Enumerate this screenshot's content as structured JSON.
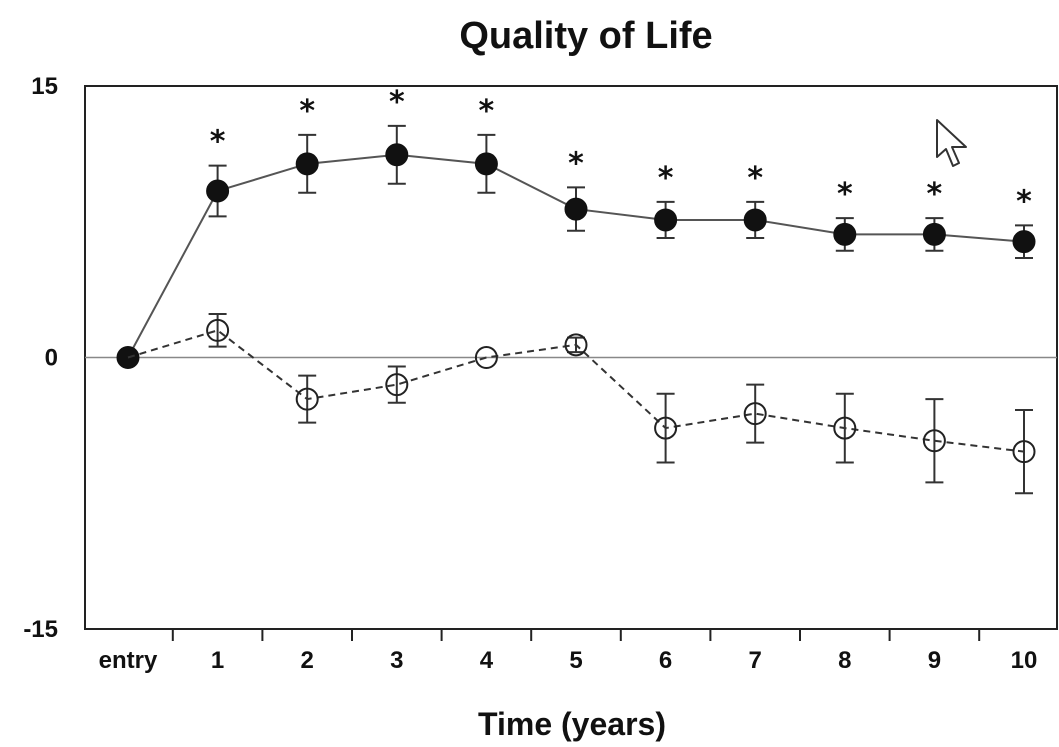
{
  "chart_data": {
    "type": "line",
    "title": "Quality of Life",
    "xlabel": "Time (years)",
    "ylabel": "",
    "categories": [
      "entry",
      "1",
      "2",
      "3",
      "4",
      "5",
      "6",
      "7",
      "8",
      "9",
      "10"
    ],
    "ylim": [
      -15,
      15
    ],
    "yticks": [
      "15",
      "0",
      "-15"
    ],
    "yticks_values": [
      15,
      0,
      -15
    ],
    "zero_line": true,
    "grid": false,
    "series": [
      {
        "style": "filled-solid",
        "color": "#111111",
        "values": [
          0,
          9.2,
          10.7,
          11.2,
          10.7,
          8.2,
          7.6,
          7.6,
          6.8,
          6.8,
          6.4
        ],
        "errors": [
          0,
          1.4,
          1.6,
          1.6,
          1.6,
          1.2,
          1.0,
          1.0,
          0.9,
          0.9,
          0.9
        ],
        "significance": [
          "",
          "*",
          "*",
          "*",
          "*",
          "*",
          "*",
          "*",
          "*",
          "*",
          "*"
        ]
      },
      {
        "style": "open-dashed",
        "color": "#111111",
        "values": [
          0,
          1.5,
          -2.3,
          -1.5,
          0,
          0.7,
          -3.9,
          -3.1,
          -3.9,
          -4.6,
          -5.2
        ],
        "errors": [
          0,
          0.9,
          1.3,
          1.0,
          0,
          0.4,
          1.9,
          1.6,
          1.9,
          2.3,
          2.3
        ]
      }
    ]
  }
}
